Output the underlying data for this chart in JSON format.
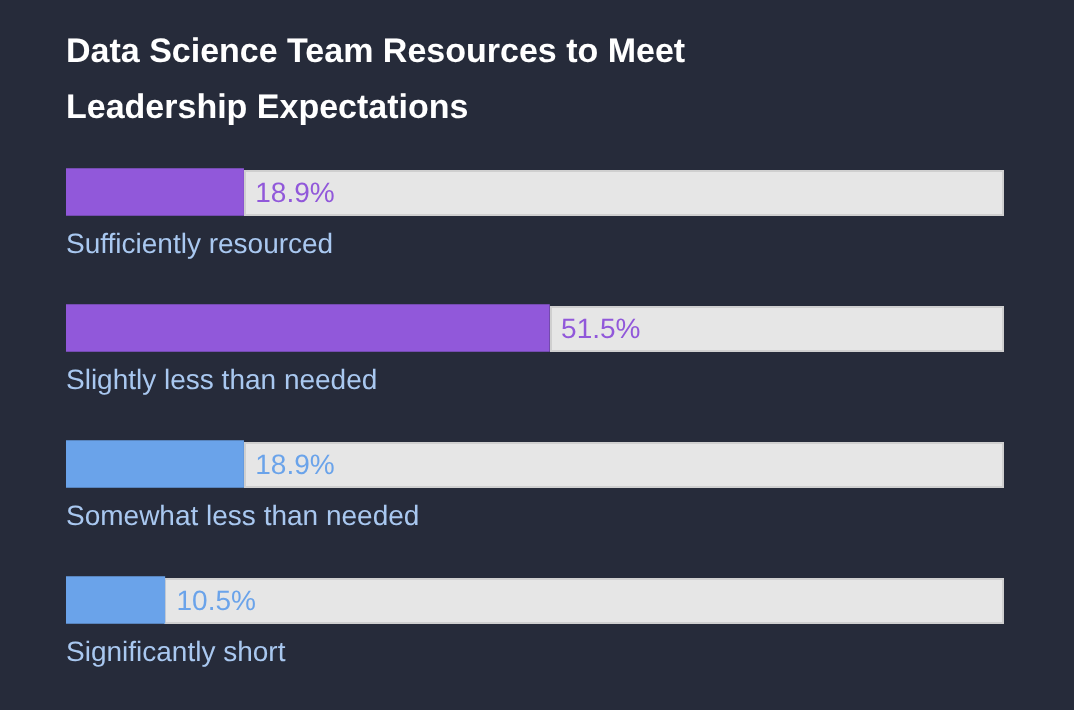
{
  "chart_data": {
    "type": "bar",
    "orientation": "horizontal",
    "title": "Data Science Team Resources to Meet Leadership Expectations",
    "categories": [
      "Sufficiently resourced",
      "Slightly less than needed",
      "Somewhat less than needed",
      "Significantly short"
    ],
    "values": [
      18.9,
      51.5,
      18.9,
      10.5
    ],
    "value_labels": [
      "18.9%",
      "51.5%",
      "18.9%",
      "10.5%"
    ],
    "colors": [
      "#9158da",
      "#9158da",
      "#6aa3ea",
      "#6aa3ea"
    ],
    "xlim": [
      0,
      100
    ],
    "grid": false,
    "legend": false
  }
}
